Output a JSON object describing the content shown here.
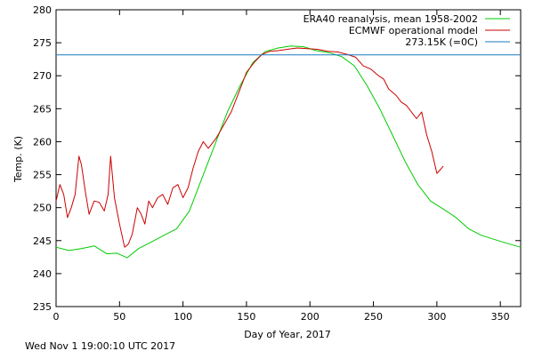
{
  "footer_timestamp": "Wed Nov  1 19:00:10 UTC 2017",
  "chart_data": {
    "type": "line",
    "title": "",
    "xlabel": "Day of Year, 2017",
    "ylabel": "Temp. (K)",
    "xlim": [
      0,
      366
    ],
    "ylim": [
      235,
      280
    ],
    "x_ticks": [
      0,
      50,
      100,
      150,
      200,
      250,
      300,
      350
    ],
    "y_ticks": [
      235,
      240,
      245,
      250,
      255,
      260,
      265,
      270,
      275,
      280
    ],
    "grid": false,
    "legend_position": "top-right",
    "series": [
      {
        "name": "ERA40 reanalysis, mean 1958-2002",
        "color": "#00cc00",
        "x": [
          0,
          10,
          20,
          30,
          40,
          48,
          56,
          65,
          75,
          85,
          95,
          105,
          115,
          125,
          135,
          145,
          155,
          165,
          175,
          185,
          195,
          205,
          215,
          225,
          235,
          245,
          255,
          265,
          275,
          285,
          295,
          305,
          315,
          325,
          335,
          345,
          355,
          366
        ],
        "y": [
          244.0,
          243.5,
          243.8,
          244.2,
          243.0,
          243.1,
          242.4,
          243.8,
          244.8,
          245.8,
          246.8,
          249.5,
          254.5,
          259.5,
          264.5,
          268.5,
          272.0,
          273.7,
          274.2,
          274.5,
          274.4,
          273.8,
          273.5,
          272.9,
          271.5,
          268.5,
          265.0,
          261.0,
          257.0,
          253.5,
          251.0,
          249.8,
          248.5,
          246.8,
          245.8,
          245.2,
          244.6,
          244.0
        ]
      },
      {
        "name": "ECMWF operational model",
        "color": "#cc0000",
        "x": [
          0,
          3,
          6,
          9,
          12,
          15,
          18,
          20,
          23,
          26,
          30,
          34,
          38,
          41,
          43,
          46,
          50,
          54,
          57,
          60,
          64,
          67,
          70,
          73,
          76,
          80,
          84,
          88,
          92,
          96,
          100,
          104,
          108,
          112,
          116,
          120,
          126,
          132,
          138,
          144,
          150,
          156,
          162,
          168,
          175,
          182,
          190,
          198,
          206,
          214,
          222,
          230,
          236,
          242,
          248,
          254,
          258,
          262,
          268,
          272,
          276,
          280,
          284,
          288,
          292,
          296,
          300,
          303,
          305
        ],
        "y": [
          251.0,
          253.5,
          252.0,
          248.5,
          250.0,
          252.0,
          257.8,
          256.5,
          252.5,
          249.0,
          251.0,
          250.8,
          249.5,
          252.0,
          257.8,
          251.5,
          247.5,
          244.0,
          244.5,
          246.0,
          250.0,
          249.0,
          247.5,
          251.0,
          250.0,
          251.5,
          252.0,
          250.5,
          253.0,
          253.5,
          251.5,
          253.0,
          256.0,
          258.5,
          260.0,
          259.0,
          260.5,
          262.5,
          264.5,
          267.5,
          270.5,
          272.0,
          273.2,
          273.7,
          273.8,
          274.0,
          274.2,
          274.1,
          274.0,
          273.7,
          273.6,
          273.2,
          272.8,
          271.5,
          271.0,
          270.0,
          269.5,
          268.0,
          267.0,
          266.0,
          265.5,
          264.5,
          263.5,
          264.5,
          261.0,
          258.5,
          255.2,
          255.8,
          256.3
        ]
      },
      {
        "name": "273.15K (=0C)",
        "color": "#1a7abf",
        "x": [
          0,
          366
        ],
        "y": [
          273.15,
          273.15
        ]
      }
    ]
  }
}
